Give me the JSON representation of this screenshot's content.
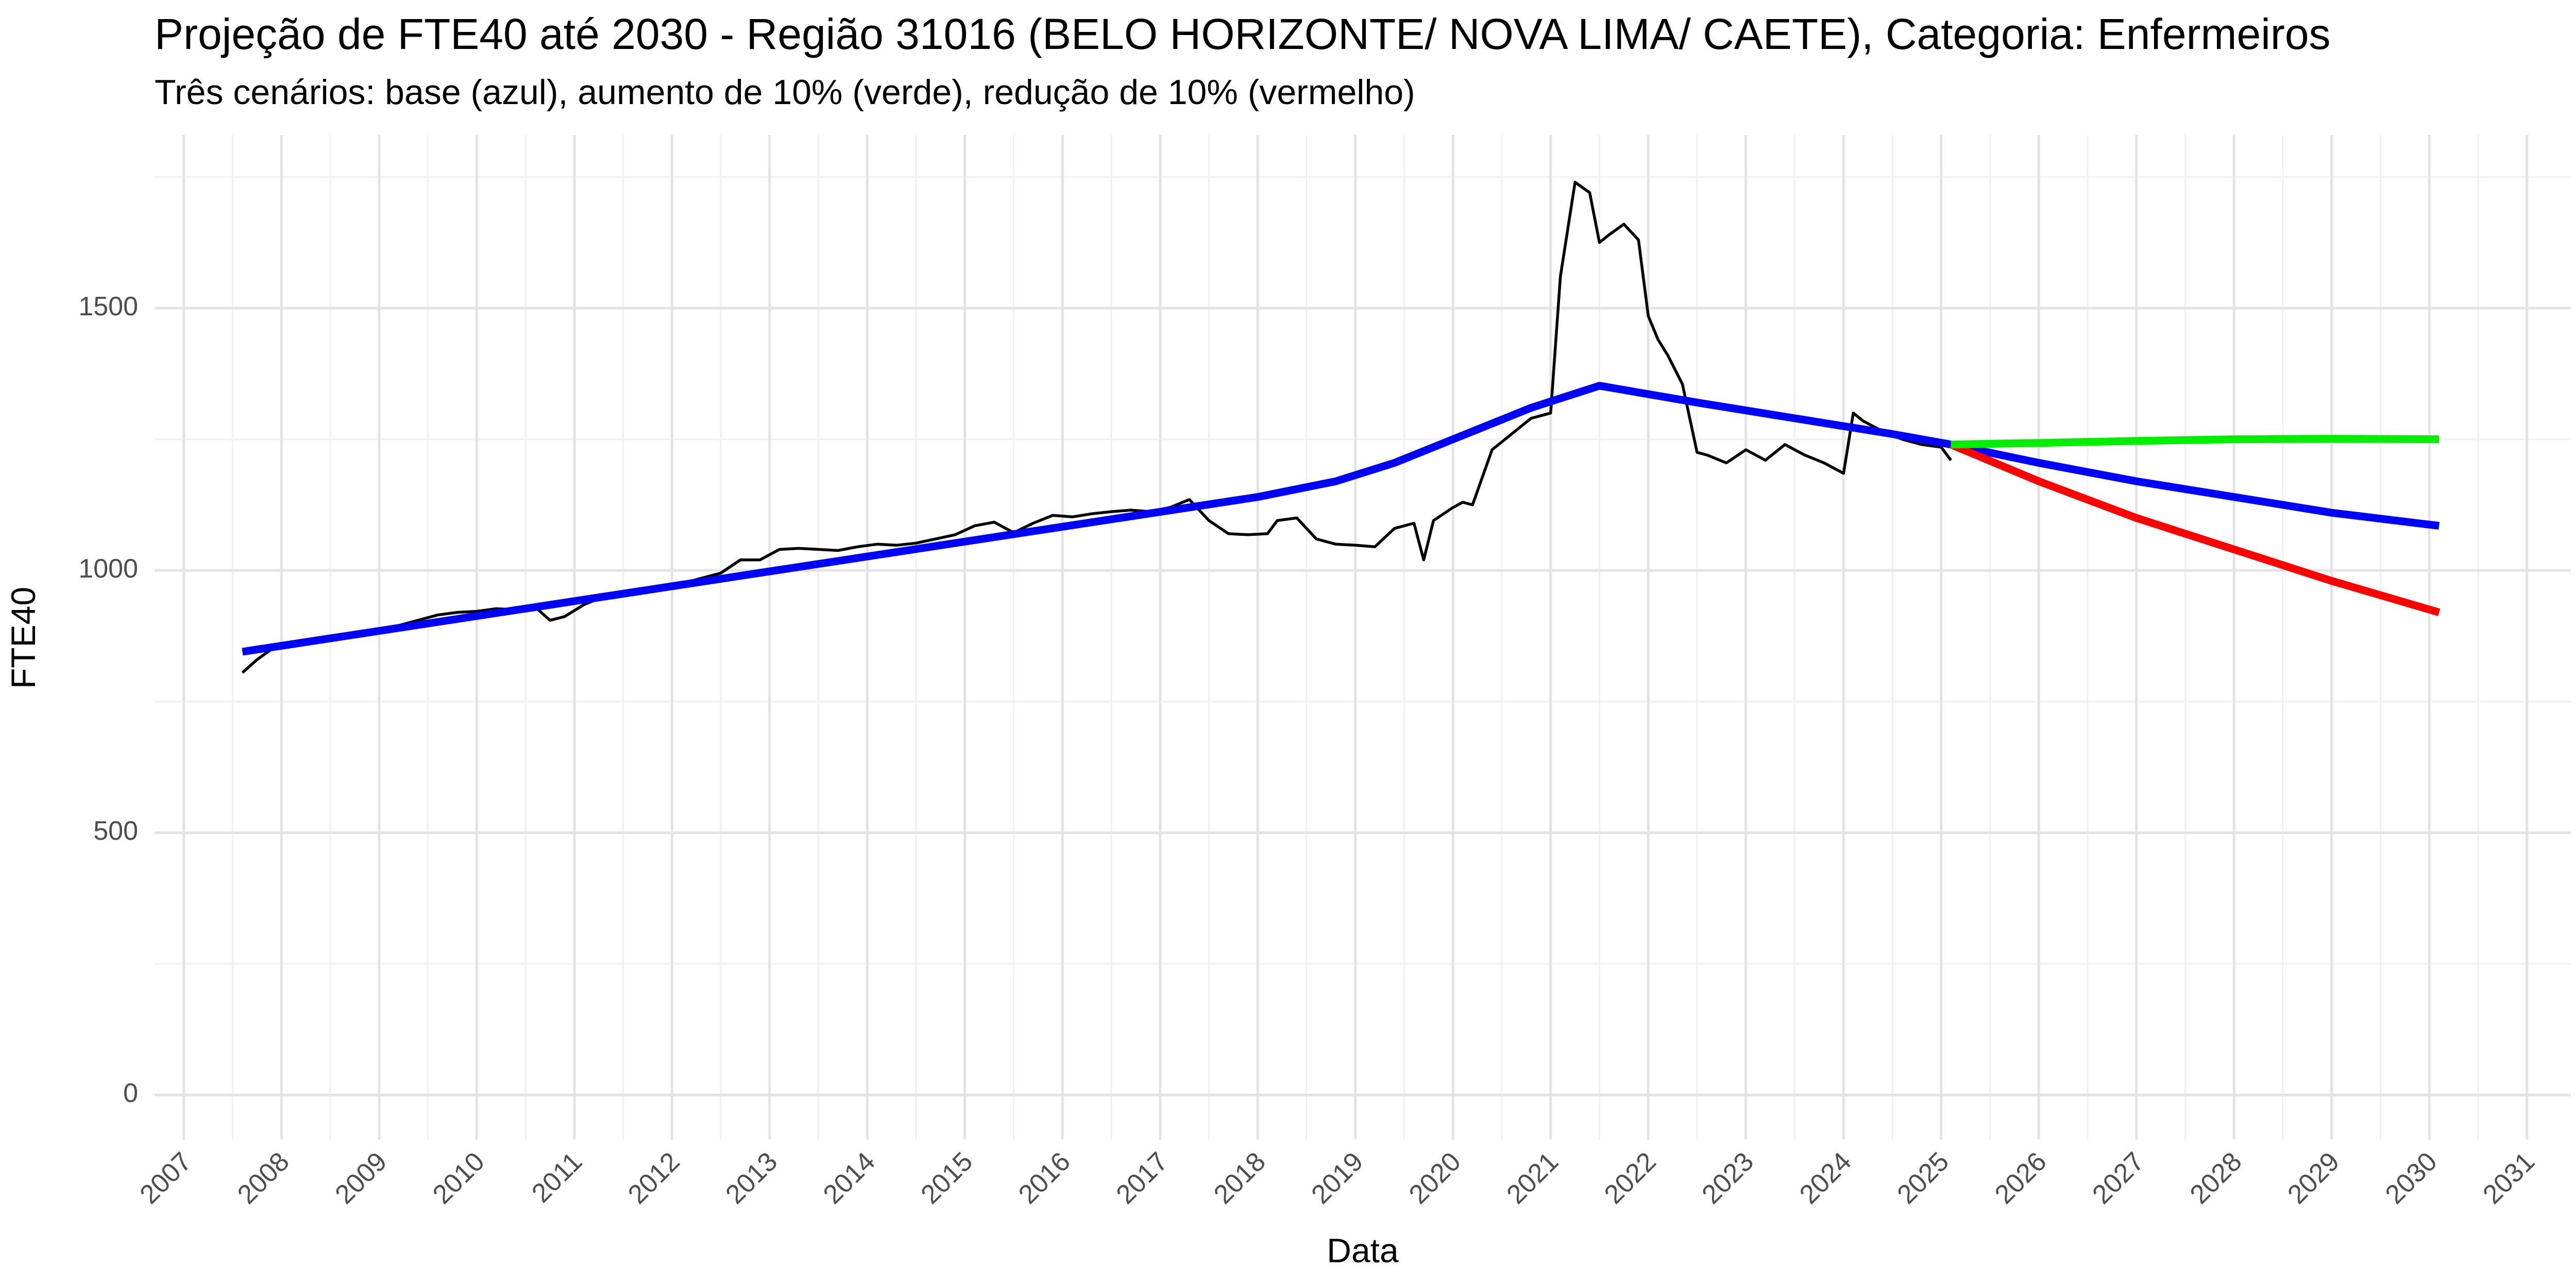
{
  "chart_data": {
    "type": "line",
    "title": "Projeção de FTE40 até 2030 - Região 31016 (BELO HORIZONTE/ NOVA LIMA/ CAETE), Categoria: Enfermeiros",
    "subtitle": "Três cenários: base (azul), aumento de 10% (verde), redução de 10% (vermelho)",
    "xlabel": "Data",
    "ylabel": "FTE40",
    "xlim": [
      2006.7,
      2031.45
    ],
    "ylim": [
      -85,
      1830
    ],
    "x_ticks": [
      "2007",
      "2008",
      "2009",
      "2010",
      "2011",
      "2012",
      "2013",
      "2014",
      "2015",
      "2016",
      "2017",
      "2018",
      "2019",
      "2020",
      "2021",
      "2022",
      "2023",
      "2024",
      "2025",
      "2026",
      "2027",
      "2028",
      "2029",
      "2030",
      "2031"
    ],
    "y_ticks": [
      0,
      500,
      1000,
      1500
    ],
    "grid": true,
    "legend": "none",
    "colors": {
      "observed": "#000000",
      "base": "#0000ff",
      "up10": "#00ee00",
      "down10": "#ff0000"
    },
    "series": [
      {
        "key": "observed",
        "x": [
          2007.6,
          2007.75,
          2007.9,
          2008.0,
          2008.2,
          2008.4,
          2008.6,
          2008.8,
          2009.0,
          2009.2,
          2009.4,
          2009.6,
          2009.8,
          2010.0,
          2010.2,
          2010.4,
          2010.6,
          2010.75,
          2010.9,
          2011.1,
          2011.3,
          2011.5,
          2011.7,
          2011.9,
          2012.1,
          2012.3,
          2012.5,
          2012.7,
          2012.9,
          2013.1,
          2013.3,
          2013.5,
          2013.7,
          2013.9,
          2014.1,
          2014.3,
          2014.5,
          2014.7,
          2014.9,
          2015.1,
          2015.3,
          2015.5,
          2015.7,
          2015.9,
          2016.1,
          2016.3,
          2016.5,
          2016.7,
          2016.9,
          2017.1,
          2017.3,
          2017.5,
          2017.7,
          2017.9,
          2018.1,
          2018.2,
          2018.4,
          2018.6,
          2018.8,
          2019.0,
          2019.2,
          2019.4,
          2019.6,
          2019.7,
          2019.8,
          2020.0,
          2020.1,
          2020.2,
          2020.4,
          2020.6,
          2020.8,
          2020.9,
          2021.0,
          2021.1,
          2021.25,
          2021.4,
          2021.5,
          2021.6,
          2021.75,
          2021.9,
          2022.0,
          2022.1,
          2022.2,
          2022.35,
          2022.5,
          2022.6,
          2022.8,
          2023.0,
          2023.2,
          2023.4,
          2023.6,
          2023.8,
          2024.0,
          2024.1,
          2024.2,
          2024.4,
          2024.6,
          2024.8,
          2025.0,
          2025.1
        ],
        "y": [
          805,
          830,
          850,
          855,
          860,
          868,
          872,
          878,
          885,
          895,
          905,
          915,
          920,
          922,
          927,
          925,
          930,
          905,
          912,
          935,
          950,
          955,
          960,
          965,
          975,
          985,
          995,
          1020,
          1020,
          1040,
          1042,
          1040,
          1038,
          1045,
          1050,
          1048,
          1052,
          1060,
          1068,
          1085,
          1092,
          1072,
          1090,
          1105,
          1102,
          1108,
          1112,
          1115,
          1112,
          1120,
          1135,
          1095,
          1070,
          1068,
          1070,
          1095,
          1100,
          1060,
          1050,
          1048,
          1045,
          1080,
          1090,
          1020,
          1095,
          1120,
          1130,
          1125,
          1230,
          1260,
          1290,
          1295,
          1300,
          1560,
          1740,
          1720,
          1625,
          1640,
          1660,
          1630,
          1485,
          1440,
          1410,
          1355,
          1225,
          1220,
          1205,
          1230,
          1210,
          1240,
          1220,
          1205,
          1185,
          1300,
          1285,
          1265,
          1250,
          1240,
          1235,
          1210
        ]
      },
      {
        "key": "base",
        "x": [
          2007.6,
          2018.0,
          2018.8,
          2019.4,
          2020.0,
          2020.8,
          2021.5,
          2022.5,
          2023.5,
          2024.5,
          2025.1,
          2026,
          2027,
          2028,
          2029,
          2030.1
        ],
        "y": [
          845,
          1140,
          1170,
          1205,
          1250,
          1310,
          1352,
          1320,
          1290,
          1260,
          1240,
          1205,
          1170,
          1140,
          1110,
          1085
        ]
      },
      {
        "key": "up10",
        "x": [
          2025.1,
          2026,
          2027,
          2028,
          2029,
          2030.1
        ],
        "y": [
          1240,
          1243,
          1247,
          1250,
          1251,
          1250
        ]
      },
      {
        "key": "down10",
        "x": [
          2025.1,
          2026,
          2027,
          2028,
          2029,
          2030.1
        ],
        "y": [
          1240,
          1170,
          1100,
          1040,
          980,
          920
        ]
      }
    ]
  }
}
